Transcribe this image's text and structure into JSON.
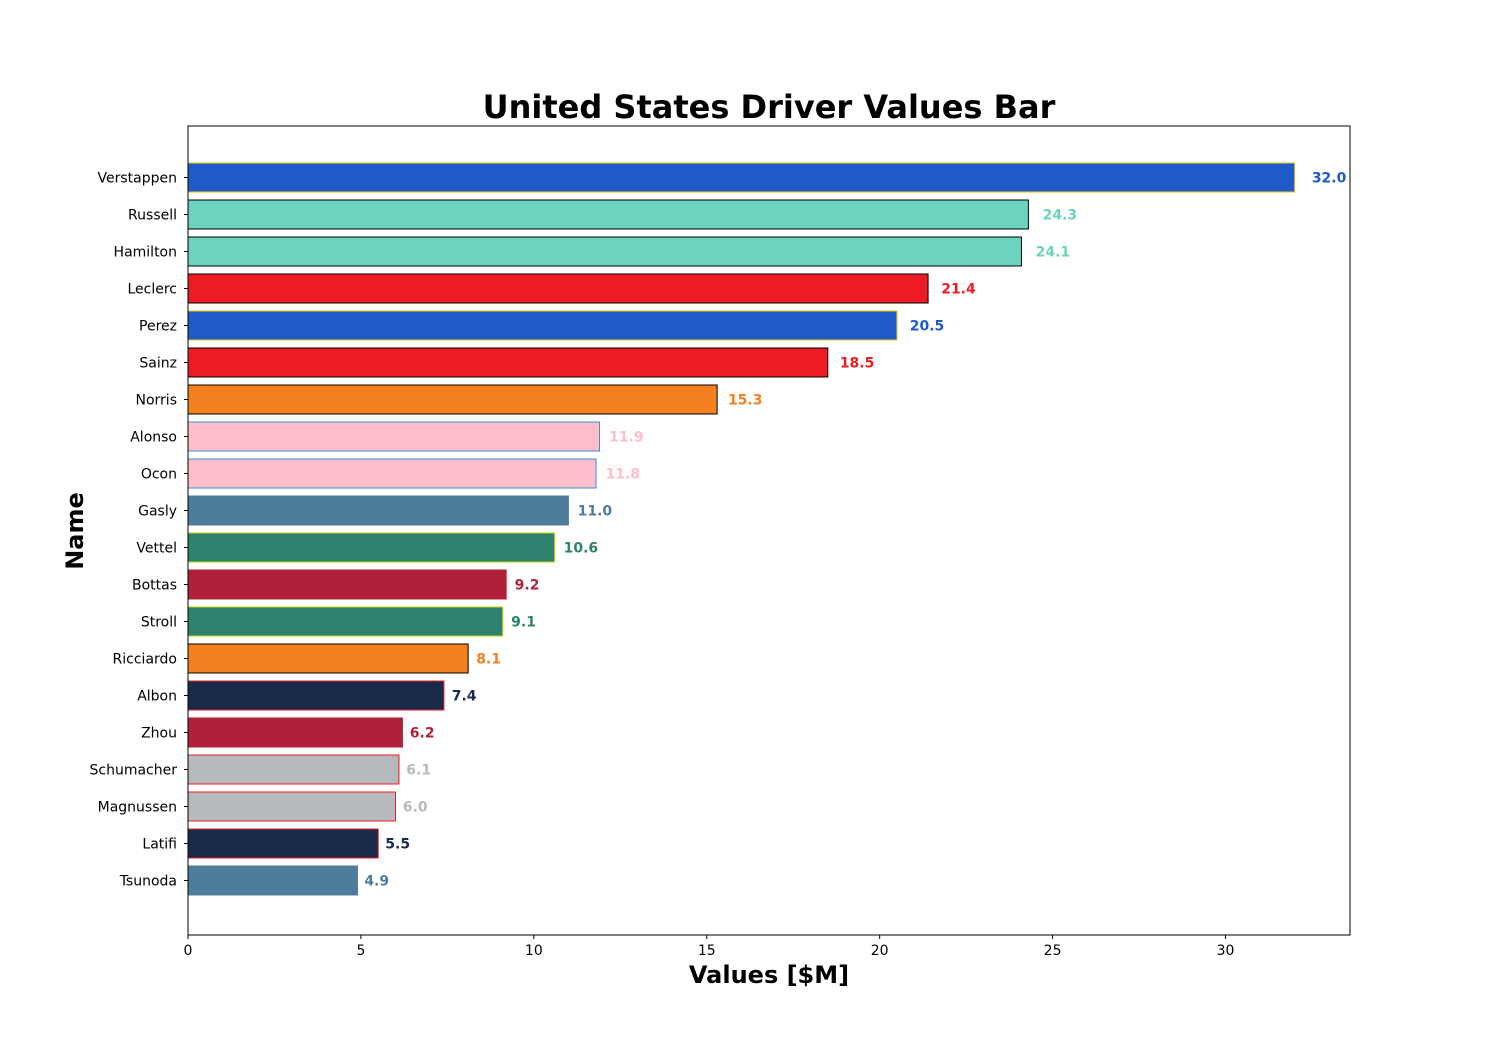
{
  "chart_data": {
    "type": "bar",
    "orientation": "horizontal",
    "title": "United States Driver Values Bar",
    "xlabel": "Values [$M]",
    "ylabel": "Name",
    "xlim": [
      0,
      33.6
    ],
    "xticks": [
      0,
      5,
      10,
      15,
      20,
      25,
      30
    ],
    "grid": false,
    "legend": "none",
    "categories": [
      "Verstappen",
      "Russell",
      "Hamilton",
      "Leclerc",
      "Perez",
      "Sainz",
      "Norris",
      "Alonso",
      "Ocon",
      "Gasly",
      "Vettel",
      "Bottas",
      "Stroll",
      "Ricciardo",
      "Albon",
      "Zhou",
      "Schumacher",
      "Magnussen",
      "Latifi",
      "Tsunoda"
    ],
    "values": [
      32.0,
      24.3,
      24.1,
      21.4,
      20.5,
      18.5,
      15.3,
      11.9,
      11.8,
      11.0,
      10.6,
      9.2,
      9.1,
      8.1,
      7.4,
      6.2,
      6.1,
      6.0,
      5.5,
      4.9
    ],
    "value_labels": [
      "32.0",
      "24.3",
      "24.1",
      "21.4",
      "20.5",
      "18.5",
      "15.3",
      "11.9",
      "11.8",
      "11.0",
      "10.6",
      "9.2",
      "9.1",
      "8.1",
      "7.4",
      "6.2",
      "6.1",
      "6.0",
      "5.5",
      "4.9"
    ],
    "bar_colors": [
      "#1f5bc7",
      "#6cd3bf",
      "#6cd3bf",
      "#ed1c24",
      "#1f5bc7",
      "#ed1c24",
      "#f58020",
      "#ffbec9",
      "#ffbec9",
      "#4e7c9b",
      "#2d826d",
      "#b12039",
      "#2d826d",
      "#f58020",
      "#1a2b4a",
      "#b12039",
      "#b6babd",
      "#b6babd",
      "#1a2b4a",
      "#4e7c9b"
    ],
    "edge_colors": [
      "#f1c40f",
      "#000000",
      "#000000",
      "#000000",
      "#f1c40f",
      "#000000",
      "#000000",
      "#3a8fd6",
      "#3a8fd6",
      "#4e7c9b",
      "#c8d400",
      "#b12039",
      "#c8d400",
      "#000000",
      "#ed1c24",
      "#b12039",
      "#ed1c24",
      "#ed1c24",
      "#ed1c24",
      "#4e7c9b"
    ]
  }
}
